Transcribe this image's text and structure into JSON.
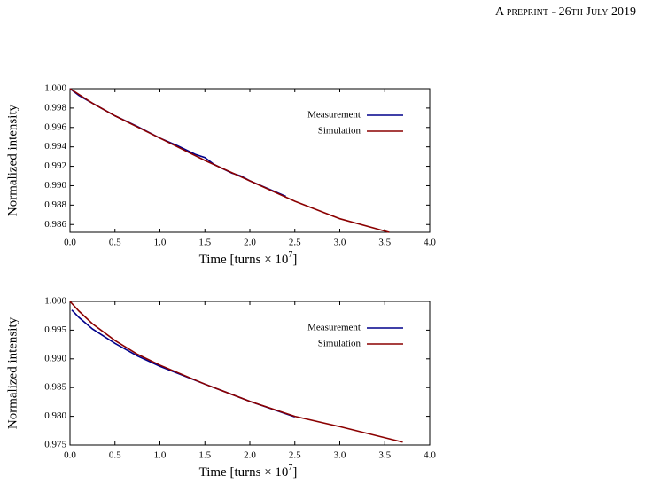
{
  "header": {
    "text": "A preprint - 26th July 2019"
  },
  "chart_data": [
    {
      "type": "line",
      "ylabel": "Normalized intensity",
      "xlabel": "Time [turns × 10",
      "xlabel_exp": "7",
      "xlabel_end": "]",
      "xlim": [
        0,
        4
      ],
      "ylim": [
        0.9852,
        1.0
      ],
      "xticks": [
        {
          "value": 0,
          "label": "0.0"
        },
        0.5,
        {
          "value": 1,
          "label": "1.0"
        },
        1.5,
        {
          "value": 2,
          "label": "2.0"
        },
        2.5,
        {
          "value": 3,
          "label": "3.0"
        },
        3.5,
        {
          "value": 4,
          "label": "4.0"
        }
      ],
      "yticks": [
        0.986,
        0.988,
        {
          "value": 0.99,
          "label": "0.990"
        },
        0.992,
        0.994,
        0.996,
        0.998,
        {
          "value": 1.0,
          "label": "1.000"
        }
      ],
      "legend": "upper right",
      "series": [
        {
          "name": "Measurement",
          "color": "#00008b",
          "x": [
            0,
            0.1,
            0.25,
            0.5,
            0.75,
            1.0,
            1.2,
            1.4,
            1.5,
            1.6,
            1.8,
            1.9,
            2.0,
            2.2,
            2.4
          ],
          "values": [
            1.0,
            0.9993,
            0.9985,
            0.9972,
            0.9961,
            0.9949,
            0.9941,
            0.9932,
            0.9929,
            0.9922,
            0.9913,
            0.991,
            0.9905,
            0.9897,
            0.9889
          ]
        },
        {
          "name": "Simulation",
          "color": "#8b0000",
          "x": [
            0,
            0.25,
            0.5,
            1.0,
            1.5,
            2.0,
            2.5,
            3.0,
            3.55
          ],
          "values": [
            1.0,
            0.9985,
            0.9972,
            0.9949,
            0.9926,
            0.9905,
            0.9884,
            0.9866,
            0.9852
          ]
        }
      ]
    },
    {
      "type": "line",
      "ylabel": "Normalized intensity",
      "xlabel": "Time [turns × 10",
      "xlabel_exp": "7",
      "xlabel_end": "]",
      "xlim": [
        0,
        4
      ],
      "ylim": [
        0.975,
        1.0
      ],
      "xticks": [
        {
          "value": 0,
          "label": "0.0"
        },
        0.5,
        {
          "value": 1,
          "label": "1.0"
        },
        1.5,
        {
          "value": 2,
          "label": "2.0"
        },
        2.5,
        {
          "value": 3,
          "label": "3.0"
        },
        3.5,
        {
          "value": 4,
          "label": "4.0"
        }
      ],
      "yticks": [
        0.975,
        {
          "value": 0.98,
          "label": "0.980"
        },
        0.985,
        {
          "value": 0.99,
          "label": "0.990"
        },
        0.995,
        {
          "value": 1.0,
          "label": "1.000"
        }
      ],
      "legend": "upper right",
      "series": [
        {
          "name": "Measurement",
          "color": "#00008b",
          "x": [
            0.02,
            0.1,
            0.25,
            0.4,
            0.5,
            0.75,
            1.0,
            1.5,
            2.0,
            2.5
          ],
          "values": [
            0.9985,
            0.9972,
            0.9952,
            0.9937,
            0.9927,
            0.9905,
            0.9887,
            0.9856,
            0.9826,
            0.9799
          ]
        },
        {
          "name": "Simulation",
          "color": "#8b0000",
          "x": [
            0,
            0.1,
            0.25,
            0.5,
            0.75,
            1.0,
            1.5,
            2.0,
            2.5,
            3.0,
            3.7
          ],
          "values": [
            1.0,
            0.9983,
            0.9961,
            0.9932,
            0.9908,
            0.9889,
            0.9856,
            0.9826,
            0.98,
            0.9782,
            0.9755
          ]
        }
      ]
    }
  ]
}
